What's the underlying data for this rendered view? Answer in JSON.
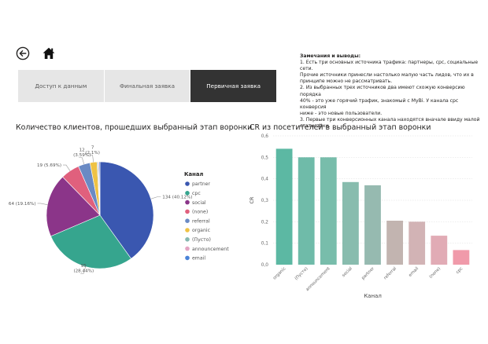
{
  "header": {
    "back_icon": "back-arrow-circle-icon",
    "home_icon": "home-icon"
  },
  "tabs": [
    {
      "label": "Доступ к данным",
      "active": false
    },
    {
      "label": "Финальная заявка",
      "active": false
    },
    {
      "label": "Первичная заявка",
      "active": true
    }
  ],
  "notes": {
    "title": "Замечания и выводы:",
    "lines": [
      "1. Есть три основных источника трафика: партнеры, cpc, социальные сети.",
      "Прочие источники принесли настолько малую часть лидов, что их в",
      "принципе можно не рассматривать.",
      "2. Из выбранных трех источников два имеют схожую конверсию порядка",
      "40% - это уже горячий трафик, знакомый с MyBi. У канала cpc конверсия",
      "ниже - это новые пользователи.",
      "3. Первые три конверсионных канала находятся вначале ввиду малой",
      "статистики."
    ]
  },
  "chart_data": [
    {
      "type": "pie",
      "title": "Количество клиентов, прошедших выбранный этап воронки",
      "legend_title": "Канал",
      "legend_position": "right",
      "slices": [
        {
          "name": "partner",
          "value": 134,
          "label": "134 (40.12%)",
          "color": "#3a57b0"
        },
        {
          "name": "cpc",
          "value": 95,
          "label": "95 (28.44%)",
          "color": "#36a58e"
        },
        {
          "name": "social",
          "value": 64,
          "label": "64 (19.16%)",
          "color": "#8b3589"
        },
        {
          "name": "(none)",
          "value": 19,
          "label": "19 (5.69%)",
          "color": "#e0607d"
        },
        {
          "name": "referral",
          "value": 12,
          "label": "12 (3.59%)",
          "color": "#6a8ac4"
        },
        {
          "name": "organic",
          "value": 7,
          "label": "7 (2.1%)",
          "color": "#efc244"
        },
        {
          "name": "(Пусто)",
          "value": 1,
          "label": "",
          "color": "#86b9b1"
        },
        {
          "name": "announcement",
          "value": 1,
          "label": "",
          "color": "#e3a5c3"
        },
        {
          "name": "email",
          "value": 1,
          "label": "",
          "color": "#4a83d8"
        }
      ]
    },
    {
      "type": "bar",
      "title": "CR из посетителей в выбранный этап воронки",
      "xlabel": "Канал",
      "ylabel": "CR",
      "ylim": [
        0,
        0.6
      ],
      "yticks": [
        "0,0",
        "0,1",
        "0,2",
        "0,3",
        "0,4",
        "0,5",
        "0,6"
      ],
      "grid": true,
      "categories": [
        "organic",
        "(Пусто)",
        "announcement",
        "social",
        "partner",
        "referral",
        "email",
        "(none)",
        "cpc"
      ],
      "values": [
        0.54,
        0.5,
        0.5,
        0.385,
        0.37,
        0.205,
        0.2,
        0.135,
        0.068
      ],
      "colors": [
        "#5cb8a3",
        "#6fbba9",
        "#78bdab",
        "#88bcae",
        "#96bab0",
        "#c2b4b0",
        "#d2b3b5",
        "#e1abb5",
        "#f09aaa"
      ]
    }
  ]
}
